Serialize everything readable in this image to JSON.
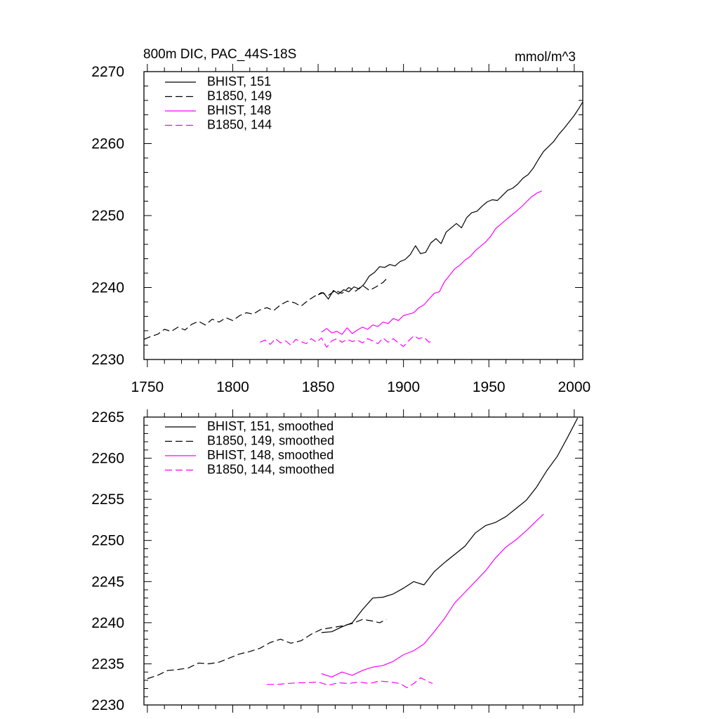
{
  "chart_data": [
    {
      "type": "line",
      "title": "800m DIC, PAC_44S-18S",
      "units": "mmol/m^3",
      "xlim": [
        1748,
        2005
      ],
      "ylim": [
        2230,
        2270
      ],
      "xticks": [
        1750,
        1800,
        1850,
        1900,
        1950,
        2000
      ],
      "yticks": [
        2230,
        2240,
        2250,
        2260,
        2270
      ],
      "legend_position": "top-left",
      "series": [
        {
          "name": "BHIST, 151",
          "color": "#000000",
          "dash": "solid",
          "x": [
            1850,
            1853,
            1856,
            1859,
            1862,
            1865,
            1868,
            1871,
            1874,
            1877,
            1880,
            1883,
            1886,
            1889,
            1892,
            1895,
            1898,
            1901,
            1904,
            1907,
            1910,
            1913,
            1916,
            1919,
            1922,
            1925,
            1928,
            1931,
            1934,
            1937,
            1940,
            1943,
            1946,
            1949,
            1952,
            1955,
            1958,
            1961,
            1964,
            1967,
            1970,
            1973,
            1976,
            1979,
            1982,
            1985,
            1988,
            1991,
            1994,
            1997,
            2000,
            2003,
            2005
          ],
          "y": [
            2239.0,
            2239.3,
            2238.4,
            2239.6,
            2239.1,
            2239.7,
            2239.4,
            2240.1,
            2239.8,
            2240.5,
            2241.6,
            2242.1,
            2242.9,
            2242.8,
            2243.2,
            2243.0,
            2243.6,
            2243.9,
            2244.6,
            2245.8,
            2244.7,
            2244.9,
            2246.2,
            2246.8,
            2246.1,
            2247.7,
            2248.3,
            2248.9,
            2248.3,
            2249.7,
            2250.4,
            2250.6,
            2251.3,
            2251.9,
            2252.2,
            2252.1,
            2252.8,
            2253.5,
            2253.8,
            2254.4,
            2255.2,
            2255.7,
            2256.6,
            2257.8,
            2258.9,
            2259.6,
            2260.3,
            2261.3,
            2262.1,
            2263.0,
            2263.9,
            2265.0,
            2265.8
          ]
        },
        {
          "name": "B1850, 149",
          "color": "#000000",
          "dash": "dashed",
          "x": [
            1748,
            1752,
            1756,
            1760,
            1764,
            1768,
            1772,
            1776,
            1780,
            1784,
            1788,
            1792,
            1796,
            1800,
            1804,
            1808,
            1812,
            1816,
            1820,
            1824,
            1828,
            1832,
            1836,
            1840,
            1844,
            1848,
            1852,
            1856,
            1860,
            1864,
            1868,
            1872,
            1876,
            1880,
            1884,
            1888,
            1890
          ],
          "y": [
            2232.8,
            2233.2,
            2233.5,
            2234.2,
            2233.9,
            2234.5,
            2234.1,
            2234.9,
            2235.3,
            2234.8,
            2235.6,
            2235.2,
            2235.8,
            2235.4,
            2236.1,
            2236.5,
            2236.3,
            2236.9,
            2237.2,
            2236.8,
            2237.6,
            2238.1,
            2237.9,
            2237.4,
            2238.2,
            2238.8,
            2239.3,
            2238.9,
            2239.6,
            2239.2,
            2240.0,
            2239.5,
            2240.3,
            2239.6,
            2240.1,
            2240.7,
            2241.2
          ]
        },
        {
          "name": "BHIST, 148",
          "color": "#ff00ff",
          "dash": "solid",
          "x": [
            1852,
            1855,
            1858,
            1861,
            1864,
            1867,
            1870,
            1873,
            1876,
            1879,
            1882,
            1885,
            1888,
            1891,
            1894,
            1897,
            1900,
            1903,
            1906,
            1909,
            1912,
            1915,
            1918,
            1921,
            1924,
            1927,
            1930,
            1933,
            1936,
            1939,
            1942,
            1945,
            1948,
            1951,
            1954,
            1957,
            1960,
            1963,
            1966,
            1969,
            1972,
            1975,
            1978,
            1981
          ],
          "y": [
            2233.8,
            2234.3,
            2233.7,
            2233.9,
            2233.5,
            2234.4,
            2233.6,
            2234.1,
            2234.5,
            2234.2,
            2234.8,
            2234.6,
            2235.2,
            2235.0,
            2235.7,
            2235.4,
            2236.1,
            2236.3,
            2236.5,
            2237.2,
            2237.6,
            2238.4,
            2239.2,
            2239.4,
            2240.8,
            2241.7,
            2242.6,
            2243.1,
            2243.8,
            2244.3,
            2245.1,
            2245.7,
            2246.3,
            2247.1,
            2248.2,
            2248.8,
            2249.4,
            2250.0,
            2250.6,
            2251.2,
            2251.9,
            2252.6,
            2253.1,
            2253.4
          ]
        },
        {
          "name": "B1850, 144",
          "color": "#ff00ff",
          "dash": "dashed",
          "x": [
            1816,
            1819,
            1822,
            1825,
            1828,
            1831,
            1834,
            1837,
            1840,
            1843,
            1846,
            1849,
            1852,
            1855,
            1858,
            1861,
            1864,
            1867,
            1870,
            1873,
            1876,
            1879,
            1882,
            1885,
            1888,
            1891,
            1894,
            1897,
            1900,
            1903,
            1906,
            1909,
            1912,
            1915,
            1917
          ],
          "y": [
            2232.4,
            2232.7,
            2232.1,
            2232.9,
            2232.3,
            2232.6,
            2232.0,
            2232.8,
            2232.5,
            2232.2,
            2232.9,
            2232.4,
            2233.0,
            2231.7,
            2232.6,
            2232.9,
            2232.4,
            2232.8,
            2232.5,
            2232.7,
            2232.3,
            2232.9,
            2232.6,
            2232.2,
            2233.0,
            2232.4,
            2232.9,
            2232.3,
            2231.8,
            2232.6,
            2233.3,
            2232.9,
            2233.1,
            2232.4,
            2232.6
          ]
        }
      ]
    },
    {
      "type": "line",
      "title": "",
      "xlim": [
        1748,
        2005
      ],
      "ylim": [
        2230,
        2265
      ],
      "xticks": [
        1750,
        1800,
        1850,
        1900,
        1950,
        2000
      ],
      "yticks": [
        2230,
        2235,
        2240,
        2245,
        2250,
        2255,
        2260,
        2265
      ],
      "legend_position": "top-left",
      "series": [
        {
          "name": "BHIST, 151, smoothed",
          "color": "#000000",
          "dash": "solid",
          "x": [
            1852,
            1858,
            1864,
            1870,
            1876,
            1882,
            1888,
            1894,
            1900,
            1906,
            1912,
            1918,
            1924,
            1930,
            1936,
            1942,
            1948,
            1954,
            1960,
            1966,
            1972,
            1978,
            1984,
            1990,
            1996,
            2002
          ],
          "y": [
            2238.8,
            2238.9,
            2239.5,
            2240.0,
            2241.6,
            2243.0,
            2243.1,
            2243.5,
            2244.2,
            2245.0,
            2244.6,
            2246.2,
            2247.3,
            2248.3,
            2249.3,
            2250.9,
            2251.8,
            2252.2,
            2252.9,
            2253.9,
            2254.9,
            2256.5,
            2258.5,
            2260.2,
            2262.5,
            2264.9
          ]
        },
        {
          "name": "B1850, 149, smoothed",
          "color": "#000000",
          "dash": "dashed",
          "x": [
            1750,
            1756,
            1762,
            1768,
            1774,
            1780,
            1786,
            1792,
            1798,
            1804,
            1810,
            1816,
            1822,
            1828,
            1834,
            1840,
            1846,
            1852,
            1858,
            1864,
            1870,
            1876,
            1882,
            1886,
            1890
          ],
          "y": [
            2233.2,
            2233.6,
            2234.2,
            2234.3,
            2234.5,
            2235.1,
            2235.0,
            2235.2,
            2235.7,
            2236.2,
            2236.5,
            2236.9,
            2237.6,
            2238.0,
            2237.5,
            2237.8,
            2238.6,
            2239.2,
            2239.4,
            2239.6,
            2239.9,
            2240.4,
            2240.2,
            2240.0,
            2240.4
          ]
        },
        {
          "name": "BHIST, 148, smoothed",
          "color": "#ff00ff",
          "dash": "solid",
          "x": [
            1852,
            1858,
            1864,
            1870,
            1876,
            1882,
            1888,
            1894,
            1900,
            1906,
            1912,
            1918,
            1924,
            1930,
            1936,
            1942,
            1948,
            1954,
            1960,
            1966,
            1972,
            1978,
            1982
          ],
          "y": [
            2233.8,
            2233.4,
            2234.0,
            2233.6,
            2234.2,
            2234.6,
            2234.8,
            2235.3,
            2236.1,
            2236.6,
            2237.4,
            2238.9,
            2240.5,
            2242.4,
            2243.7,
            2245.0,
            2246.3,
            2247.9,
            2249.2,
            2250.1,
            2251.2,
            2252.4,
            2253.2
          ]
        },
        {
          "name": "B1850, 144, smoothed",
          "color": "#ff00ff",
          "dash": "dashed",
          "x": [
            1820,
            1826,
            1832,
            1838,
            1844,
            1850,
            1856,
            1862,
            1868,
            1874,
            1880,
            1886,
            1892,
            1898,
            1902,
            1906,
            1910,
            1914,
            1917
          ],
          "y": [
            2232.5,
            2232.5,
            2232.6,
            2232.7,
            2232.7,
            2232.8,
            2232.4,
            2232.7,
            2232.6,
            2232.8,
            2232.6,
            2232.9,
            2232.8,
            2232.6,
            2232.1,
            2232.6,
            2233.3,
            2232.9,
            2232.6
          ]
        }
      ]
    }
  ]
}
